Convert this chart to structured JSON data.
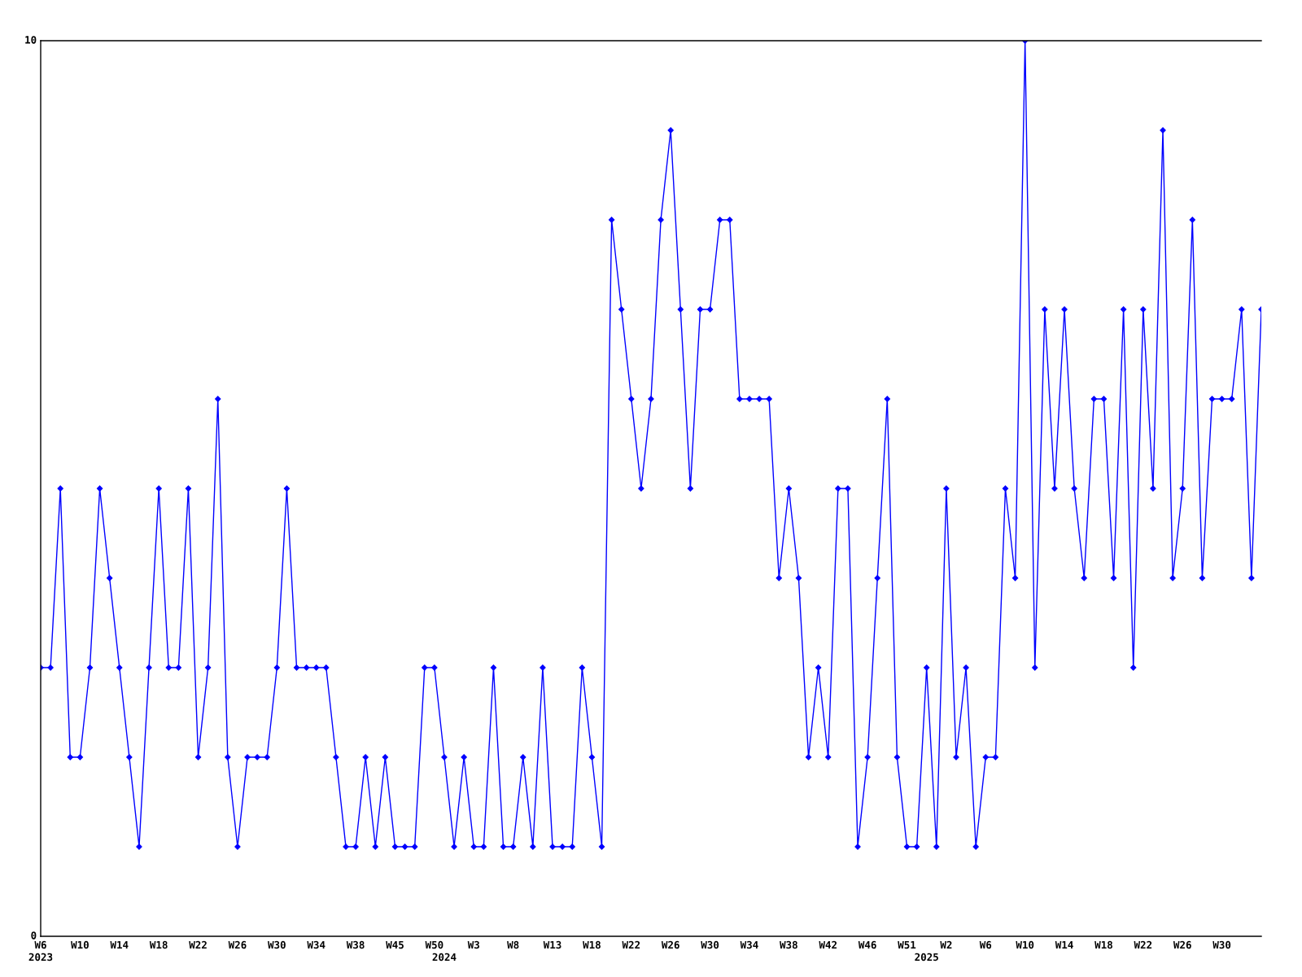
{
  "chart_data": {
    "type": "line",
    "categories": [
      "W6\n2023",
      null,
      null,
      null,
      "W10",
      null,
      null,
      null,
      "W14",
      null,
      null,
      null,
      "W18",
      null,
      null,
      null,
      "W22",
      null,
      null,
      null,
      "W26",
      null,
      null,
      null,
      "W30",
      null,
      null,
      null,
      "W34",
      null,
      null,
      null,
      "W38",
      null,
      null,
      null,
      "W45",
      null,
      null,
      null,
      "W50",
      "\n2024",
      null,
      null,
      "W3",
      null,
      null,
      null,
      "W8",
      null,
      null,
      null,
      "W13",
      null,
      null,
      null,
      "W18",
      null,
      null,
      null,
      "W22",
      null,
      null,
      null,
      "W26",
      null,
      null,
      null,
      "W30",
      null,
      null,
      null,
      "W34",
      null,
      null,
      null,
      "W38",
      null,
      null,
      null,
      "W42",
      null,
      null,
      null,
      "W46",
      null,
      null,
      null,
      "W51",
      null,
      "\n2025",
      null,
      "W2",
      null,
      null,
      null,
      "W6",
      null,
      null,
      null,
      "W10",
      null,
      null,
      null,
      "W14",
      null,
      null,
      null,
      "W18",
      null,
      null,
      null,
      "W22",
      null,
      null,
      null,
      "W26",
      null,
      null,
      null,
      "W30",
      null,
      null,
      null,
      null
    ],
    "values": [
      3,
      3,
      5,
      2,
      2,
      3,
      5,
      4,
      3,
      2,
      1,
      3,
      5,
      3,
      3,
      5,
      2,
      3,
      6,
      2,
      1,
      2,
      2,
      2,
      3,
      5,
      3,
      3,
      3,
      3,
      2,
      1,
      1,
      2,
      1,
      2,
      1,
      1,
      1,
      3,
      3,
      2,
      1,
      2,
      1,
      1,
      3,
      1,
      1,
      2,
      1,
      3,
      1,
      1,
      1,
      3,
      2,
      1,
      8,
      7,
      6,
      5,
      6,
      8,
      9,
      7,
      5,
      7,
      7,
      8,
      8,
      6,
      6,
      6,
      6,
      4,
      5,
      4,
      2,
      3,
      2,
      5,
      5,
      1,
      2,
      4,
      6,
      2,
      1,
      1,
      3,
      1,
      5,
      2,
      3,
      1,
      2,
      2,
      5,
      4,
      10,
      3,
      7,
      5,
      7,
      5,
      4,
      6,
      6,
      4,
      7,
      3,
      7,
      5,
      9,
      4,
      5,
      8,
      4,
      6,
      6,
      6,
      7,
      4,
      7
    ],
    "color": "#0000ff",
    "ylim": [
      0,
      10
    ],
    "yticks": [
      0,
      10
    ],
    "marker": "diamond",
    "line_style": "solid",
    "grid": false
  }
}
